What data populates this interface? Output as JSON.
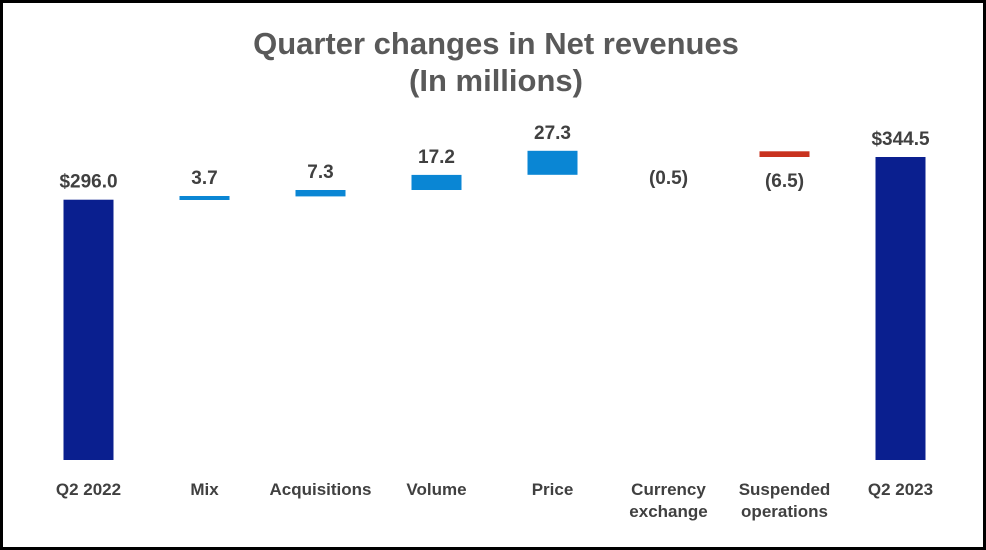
{
  "chart_data": {
    "type": "waterfall",
    "title": [
      "Quarter changes in Net revenues",
      "(In millions)"
    ],
    "categories": [
      [
        "Q2 2022"
      ],
      [
        "Mix"
      ],
      [
        "Acquisitions"
      ],
      [
        "Volume"
      ],
      [
        "Price"
      ],
      [
        "Currency",
        "exchange"
      ],
      [
        "Suspended",
        "operations"
      ],
      [
        "Q2 2023"
      ]
    ],
    "values": [
      296.0,
      3.7,
      7.3,
      17.2,
      27.3,
      -0.5,
      -6.5,
      344.5
    ],
    "bar_kinds": [
      "total",
      "increase",
      "increase",
      "increase",
      "increase",
      "decrease",
      "decrease",
      "total"
    ],
    "data_labels": [
      "$296.0",
      "3.7",
      "7.3",
      "17.2",
      "27.3",
      "(0.5)",
      "(6.5)",
      "$344.5"
    ],
    "colors": {
      "total": "#0a1f8f",
      "increase": "#0a86d4",
      "decrease": "#c8321e"
    },
    "grid": false,
    "legend": "none"
  }
}
